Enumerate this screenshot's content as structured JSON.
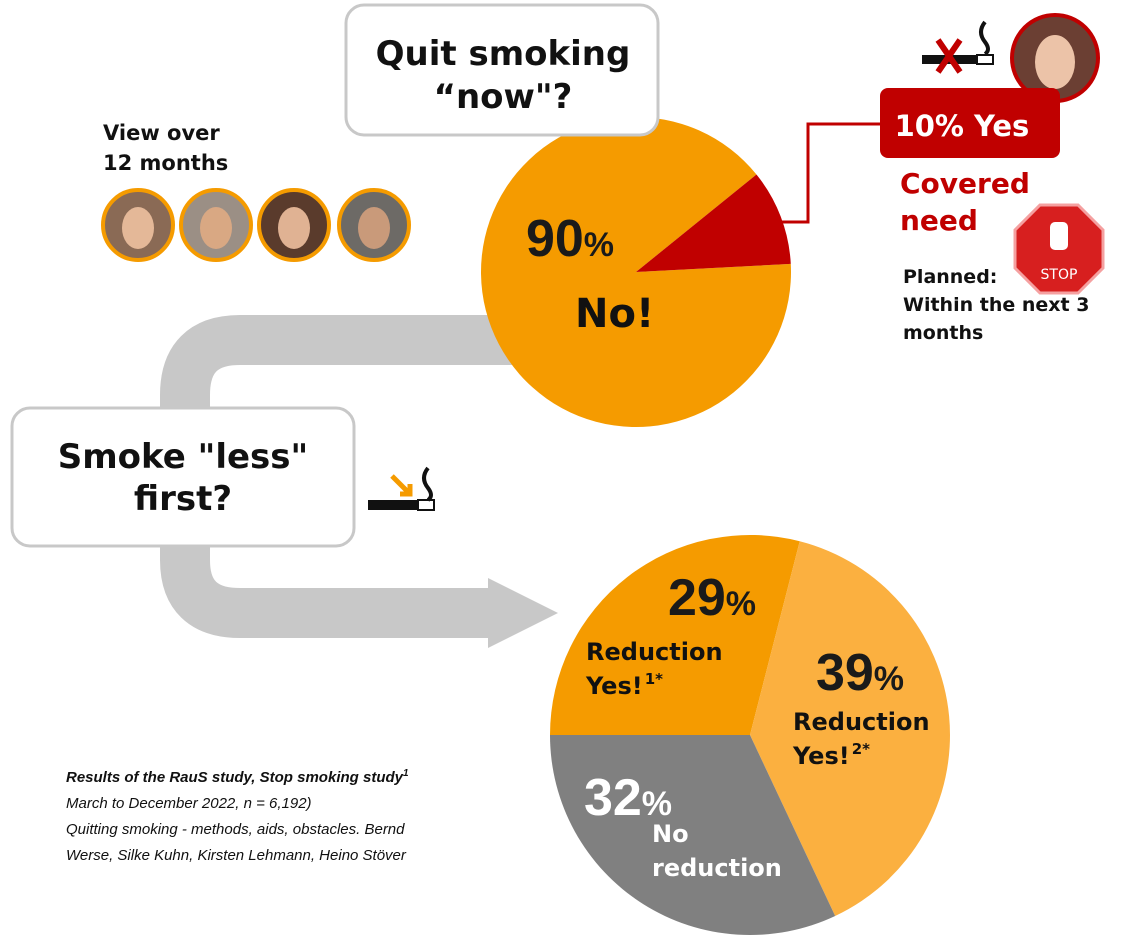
{
  "question_now": [
    "Quit smoking",
    "“now\"?"
  ],
  "view_over": [
    "View over",
    "12 months"
  ],
  "covered_need": [
    "Covered",
    "need"
  ],
  "stop_sign": "STOP",
  "planned": [
    "Planned:",
    "Within the next 3",
    "months"
  ],
  "question_less": [
    "Smoke \"less\"",
    "first?"
  ],
  "source": {
    "title": "Results of the RauS study, Stop smoking study",
    "title_note": "1",
    "lines": [
      "March to December 2022, n = 6,192)",
      "Quitting smoking - methods, aids, obstacles. Bernd",
      "Werse, Silke Kuhn, Kirsten Lehmann, Heino Stöver"
    ]
  },
  "chart_data": [
    {
      "type": "pie",
      "categories": [
        "No!",
        "Yes"
      ],
      "values": [
        90,
        10
      ],
      "value_labels": [
        "90%",
        "10%"
      ],
      "colors": [
        "#f59b00",
        "#c00000"
      ]
    },
    {
      "type": "pie",
      "categories": [
        "Reduction Yes!",
        "Reduction Yes!",
        "No reduction"
      ],
      "category_notes": [
        "1*",
        "2*",
        null
      ],
      "values": [
        29,
        39,
        32
      ],
      "value_labels": [
        "29%",
        "39%",
        "32%"
      ],
      "colors": [
        "#f59b00",
        "#fbb040",
        "#808080"
      ]
    }
  ]
}
